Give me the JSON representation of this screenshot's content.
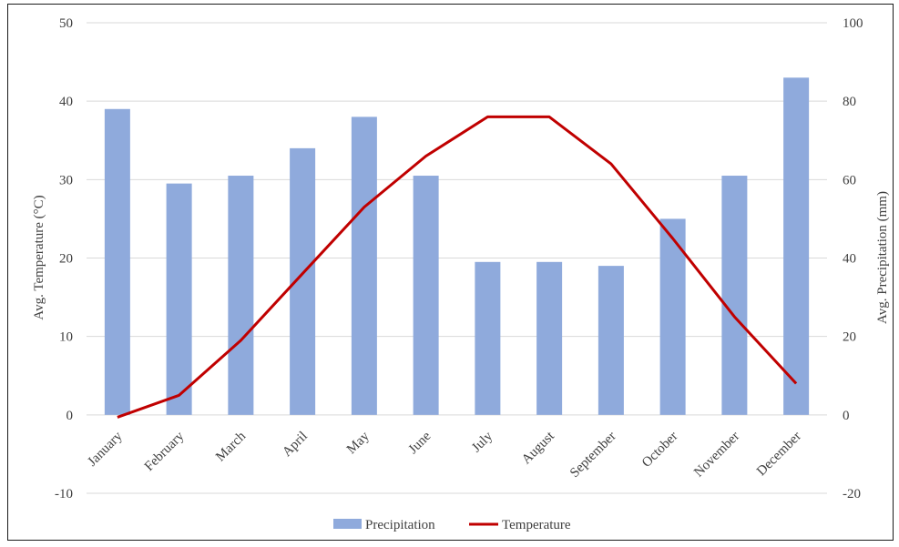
{
  "chart_data": {
    "type": "bar",
    "categories": [
      "January",
      "February",
      "March",
      "April",
      "May",
      "June",
      "July",
      "August",
      "September",
      "October",
      "November",
      "December"
    ],
    "series": [
      {
        "name": "Precipitation",
        "type": "bar",
        "axis": "right",
        "color": "#8faadc",
        "values": [
          78,
          59,
          61,
          68,
          76,
          61,
          39,
          39,
          38,
          50,
          61,
          86
        ]
      },
      {
        "name": "Temperature",
        "type": "line",
        "axis": "left",
        "color": "#c00000",
        "values": [
          -0.3,
          2.5,
          9.5,
          18,
          26.5,
          33,
          38,
          38,
          32,
          22.5,
          12.5,
          4
        ]
      }
    ],
    "ylabel": "Avg. Temperature  (°C)",
    "ylabel_right": "Avg. Precipitation  (mm)",
    "ylim": [
      -10,
      50
    ],
    "ylim_right": [
      -20,
      100
    ],
    "yticks": [
      -10,
      0,
      10,
      20,
      30,
      40,
      50
    ],
    "yticks_right": [
      -20,
      0,
      20,
      40,
      60,
      80,
      100
    ],
    "grid": true,
    "legend": "bottom"
  }
}
